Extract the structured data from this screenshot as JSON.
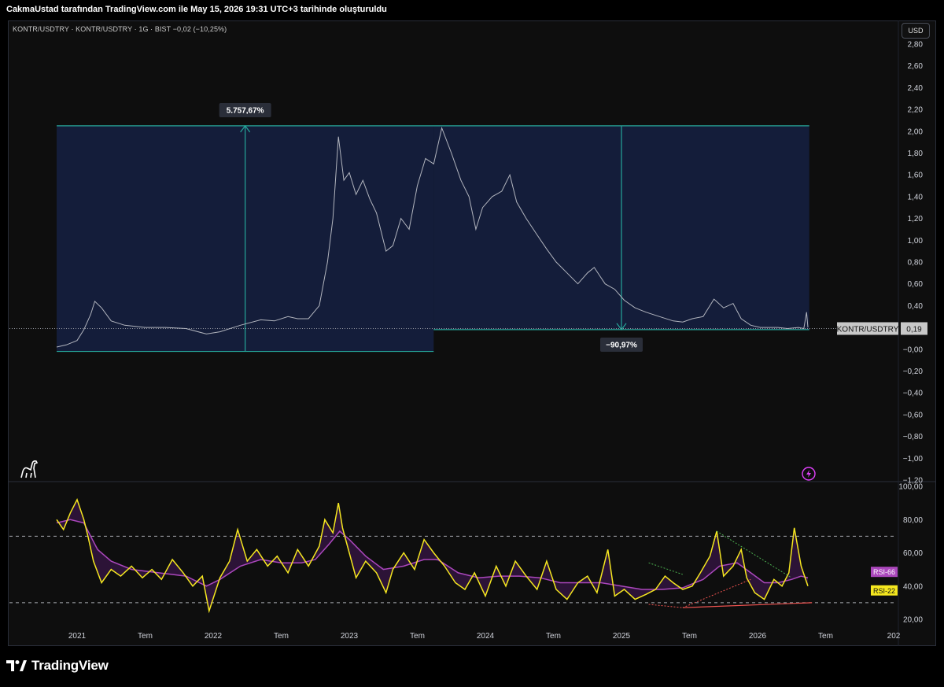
{
  "header": {
    "caption": "CakmaUstad tarafından TradingView.com ile May 15, 2026 19:31 UTC+3 tarihinde oluşturuldu"
  },
  "symbol": {
    "line": "KONTR/USDTRY · KONTR/USDTRY · 1G · BIST  −0,02 (−10,25%)"
  },
  "currency_button": "USD",
  "footer": {
    "brand": "TradingView"
  },
  "colors": {
    "background": "#0e0e0e",
    "price_line": "#b2b5be",
    "range_fill": "#1a2a5e",
    "range_line": "#26a69a",
    "rsi_fast": "#f5e71f",
    "rsi_slow": "#ab47bc",
    "trend_red": "#ef5350",
    "trend_green": "#4caf50"
  },
  "icons": {
    "logo": "tradingview-logo-icon",
    "dino": "dinosaur-icon",
    "alert": "lightning-icon"
  },
  "chart_data": [
    {
      "type": "line",
      "title": "KONTR/USDTRY",
      "timeframe": "1G",
      "exchange": "BIST",
      "last_price": "0,19",
      "last_price_label": "KONTR/USDTRY",
      "change": "−0,02 (−10,25%)",
      "ylim": [
        -1.7,
        2.8
      ],
      "y_ticks": [
        "2,80",
        "2,60",
        "2,40",
        "2,20",
        "2,00",
        "1,80",
        "1,60",
        "1,40",
        "1,20",
        "1,00",
        "0,80",
        "0,60",
        "0,40",
        "0,20",
        "−0,00",
        "−0,20",
        "−0,40",
        "−0,60",
        "−0,80",
        "−1,00",
        "−1,20"
      ],
      "series": [
        {
          "values": [
            [
              2020.85,
              0.02
            ],
            [
              2020.92,
              0.04
            ],
            [
              2021.0,
              0.08
            ],
            [
              2021.05,
              0.18
            ],
            [
              2021.1,
              0.32
            ],
            [
              2021.13,
              0.44
            ],
            [
              2021.18,
              0.38
            ],
            [
              2021.25,
              0.26
            ],
            [
              2021.35,
              0.22
            ],
            [
              2021.5,
              0.2
            ],
            [
              2021.65,
              0.2
            ],
            [
              2021.8,
              0.19
            ],
            [
              2021.95,
              0.14
            ],
            [
              2022.05,
              0.16
            ],
            [
              2022.2,
              0.22
            ],
            [
              2022.35,
              0.27
            ],
            [
              2022.45,
              0.26
            ],
            [
              2022.55,
              0.3
            ],
            [
              2022.62,
              0.28
            ],
            [
              2022.7,
              0.28
            ],
            [
              2022.78,
              0.4
            ],
            [
              2022.84,
              0.8
            ],
            [
              2022.88,
              1.2
            ],
            [
              2022.92,
              1.95
            ],
            [
              2022.96,
              1.55
            ],
            [
              2023.0,
              1.62
            ],
            [
              2023.05,
              1.42
            ],
            [
              2023.1,
              1.55
            ],
            [
              2023.15,
              1.38
            ],
            [
              2023.2,
              1.25
            ],
            [
              2023.27,
              0.9
            ],
            [
              2023.32,
              0.95
            ],
            [
              2023.38,
              1.2
            ],
            [
              2023.44,
              1.1
            ],
            [
              2023.5,
              1.5
            ],
            [
              2023.56,
              1.75
            ],
            [
              2023.62,
              1.7
            ],
            [
              2023.68,
              2.03
            ],
            [
              2023.75,
              1.8
            ],
            [
              2023.82,
              1.55
            ],
            [
              2023.88,
              1.4
            ],
            [
              2023.93,
              1.1
            ],
            [
              2023.98,
              1.3
            ],
            [
              2024.05,
              1.4
            ],
            [
              2024.12,
              1.45
            ],
            [
              2024.18,
              1.6
            ],
            [
              2024.23,
              1.35
            ],
            [
              2024.3,
              1.2
            ],
            [
              2024.38,
              1.05
            ],
            [
              2024.45,
              0.92
            ],
            [
              2024.52,
              0.8
            ],
            [
              2024.6,
              0.7
            ],
            [
              2024.68,
              0.6
            ],
            [
              2024.75,
              0.7
            ],
            [
              2024.8,
              0.75
            ],
            [
              2024.88,
              0.6
            ],
            [
              2024.95,
              0.55
            ],
            [
              2025.02,
              0.45
            ],
            [
              2025.1,
              0.38
            ],
            [
              2025.18,
              0.34
            ],
            [
              2025.28,
              0.3
            ],
            [
              2025.38,
              0.26
            ],
            [
              2025.45,
              0.25
            ],
            [
              2025.52,
              0.28
            ],
            [
              2025.6,
              0.3
            ],
            [
              2025.68,
              0.46
            ],
            [
              2025.75,
              0.38
            ],
            [
              2025.82,
              0.42
            ],
            [
              2025.88,
              0.28
            ],
            [
              2025.95,
              0.22
            ],
            [
              2026.02,
              0.2
            ],
            [
              2026.08,
              0.2
            ],
            [
              2026.15,
              0.2
            ],
            [
              2026.22,
              0.19
            ],
            [
              2026.3,
              0.2
            ],
            [
              2026.34,
              0.19
            ],
            [
              2026.36,
              0.34
            ],
            [
              2026.37,
              0.2
            ]
          ]
        }
      ],
      "range_measure_up": {
        "label": "5.757,67%",
        "x_start": 2020.85,
        "x_end": 2023.62,
        "y_low": -0.02,
        "y_high": 2.05
      },
      "range_measure_down": {
        "label": "−90,97%",
        "x_start": 2023.62,
        "x_end": 2026.38,
        "y_low": 0.18,
        "y_high": 2.05
      }
    },
    {
      "type": "line",
      "title": "RSI",
      "ylim": [
        16,
        100
      ],
      "y_ticks": [
        "100,00",
        "80,00",
        "60,00",
        "40,00",
        "20,00"
      ],
      "levels": [
        70,
        30
      ],
      "series": [
        {
          "name": "RSI-22",
          "values": [
            [
              2020.85,
              80
            ],
            [
              2020.9,
              74
            ],
            [
              2020.95,
              84
            ],
            [
              2021.0,
              92
            ],
            [
              2021.05,
              80
            ],
            [
              2021.08,
              70
            ],
            [
              2021.12,
              55
            ],
            [
              2021.18,
              42
            ],
            [
              2021.25,
              50
            ],
            [
              2021.32,
              46
            ],
            [
              2021.4,
              52
            ],
            [
              2021.48,
              45
            ],
            [
              2021.55,
              50
            ],
            [
              2021.62,
              44
            ],
            [
              2021.7,
              56
            ],
            [
              2021.78,
              48
            ],
            [
              2021.85,
              40
            ],
            [
              2021.92,
              46
            ],
            [
              2021.97,
              25
            ],
            [
              2022.05,
              45
            ],
            [
              2022.12,
              55
            ],
            [
              2022.18,
              74
            ],
            [
              2022.25,
              55
            ],
            [
              2022.32,
              62
            ],
            [
              2022.4,
              52
            ],
            [
              2022.47,
              58
            ],
            [
              2022.55,
              48
            ],
            [
              2022.62,
              62
            ],
            [
              2022.7,
              52
            ],
            [
              2022.78,
              64
            ],
            [
              2022.82,
              80
            ],
            [
              2022.88,
              72
            ],
            [
              2022.92,
              90
            ],
            [
              2022.95,
              75
            ],
            [
              2023.0,
              60
            ],
            [
              2023.05,
              45
            ],
            [
              2023.12,
              55
            ],
            [
              2023.2,
              48
            ],
            [
              2023.27,
              36
            ],
            [
              2023.32,
              50
            ],
            [
              2023.4,
              60
            ],
            [
              2023.48,
              50
            ],
            [
              2023.55,
              68
            ],
            [
              2023.62,
              60
            ],
            [
              2023.7,
              52
            ],
            [
              2023.78,
              42
            ],
            [
              2023.85,
              38
            ],
            [
              2023.92,
              48
            ],
            [
              2024.0,
              34
            ],
            [
              2024.08,
              52
            ],
            [
              2024.15,
              40
            ],
            [
              2024.22,
              55
            ],
            [
              2024.3,
              46
            ],
            [
              2024.38,
              38
            ],
            [
              2024.45,
              55
            ],
            [
              2024.52,
              38
            ],
            [
              2024.6,
              32
            ],
            [
              2024.68,
              42
            ],
            [
              2024.75,
              46
            ],
            [
              2024.82,
              36
            ],
            [
              2024.9,
              62
            ],
            [
              2024.95,
              34
            ],
            [
              2025.02,
              38
            ],
            [
              2025.1,
              32
            ],
            [
              2025.18,
              35
            ],
            [
              2025.25,
              38
            ],
            [
              2025.32,
              46
            ],
            [
              2025.38,
              42
            ],
            [
              2025.45,
              38
            ],
            [
              2025.52,
              40
            ],
            [
              2025.58,
              48
            ],
            [
              2025.65,
              58
            ],
            [
              2025.7,
              73
            ],
            [
              2025.75,
              46
            ],
            [
              2025.82,
              52
            ],
            [
              2025.88,
              62
            ],
            [
              2025.92,
              45
            ],
            [
              2025.98,
              36
            ],
            [
              2026.05,
              32
            ],
            [
              2026.12,
              44
            ],
            [
              2026.18,
              40
            ],
            [
              2026.23,
              48
            ],
            [
              2026.27,
              75
            ],
            [
              2026.32,
              52
            ],
            [
              2026.37,
              40
            ]
          ]
        },
        {
          "name": "RSI-66",
          "values": [
            [
              2020.85,
              78
            ],
            [
              2020.95,
              80
            ],
            [
              2021.05,
              78
            ],
            [
              2021.15,
              62
            ],
            [
              2021.25,
              55
            ],
            [
              2021.4,
              50
            ],
            [
              2021.6,
              48
            ],
            [
              2021.8,
              46
            ],
            [
              2021.95,
              40
            ],
            [
              2022.05,
              44
            ],
            [
              2022.2,
              52
            ],
            [
              2022.35,
              56
            ],
            [
              2022.5,
              54
            ],
            [
              2022.65,
              54
            ],
            [
              2022.75,
              56
            ],
            [
              2022.85,
              65
            ],
            [
              2022.93,
              73
            ],
            [
              2023.0,
              68
            ],
            [
              2023.12,
              58
            ],
            [
              2023.25,
              50
            ],
            [
              2023.4,
              52
            ],
            [
              2023.55,
              56
            ],
            [
              2023.65,
              56
            ],
            [
              2023.8,
              48
            ],
            [
              2023.95,
              45
            ],
            [
              2024.1,
              46
            ],
            [
              2024.25,
              46
            ],
            [
              2024.4,
              45
            ],
            [
              2024.55,
              42
            ],
            [
              2024.7,
              42
            ],
            [
              2024.85,
              42
            ],
            [
              2025.0,
              40
            ],
            [
              2025.15,
              38
            ],
            [
              2025.3,
              38
            ],
            [
              2025.45,
              39
            ],
            [
              2025.6,
              44
            ],
            [
              2025.72,
              52
            ],
            [
              2025.85,
              54
            ],
            [
              2025.95,
              48
            ],
            [
              2026.05,
              42
            ],
            [
              2026.15,
              42
            ],
            [
              2026.25,
              44
            ],
            [
              2026.32,
              46
            ],
            [
              2026.37,
              45
            ]
          ]
        }
      ]
    }
  ],
  "x_axis": {
    "ticks": [
      {
        "t": 2021.0,
        "label": "2021"
      },
      {
        "t": 2021.5,
        "label": "Tem"
      },
      {
        "t": 2022.0,
        "label": "2022"
      },
      {
        "t": 2022.5,
        "label": "Tem"
      },
      {
        "t": 2023.0,
        "label": "2023"
      },
      {
        "t": 2023.5,
        "label": "Tem"
      },
      {
        "t": 2024.0,
        "label": "2024"
      },
      {
        "t": 2024.5,
        "label": "Tem"
      },
      {
        "t": 2025.0,
        "label": "2025"
      },
      {
        "t": 2025.5,
        "label": "Tem"
      },
      {
        "t": 2026.0,
        "label": "2026"
      },
      {
        "t": 2026.5,
        "label": "Tem"
      },
      {
        "t": 2027.0,
        "label": "202"
      }
    ]
  }
}
